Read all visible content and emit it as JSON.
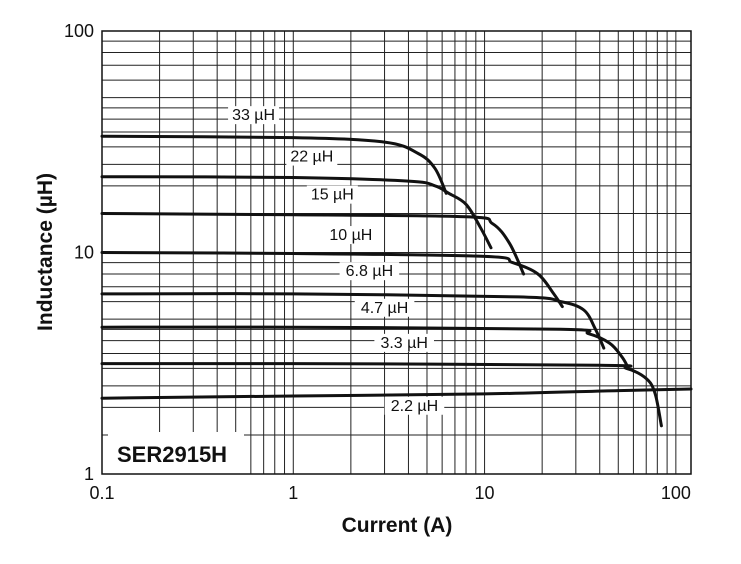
{
  "chart_data": {
    "type": "line",
    "xlabel": "Current (A)",
    "ylabel": "Inductance (µH)",
    "x_scale": "log",
    "y_scale": "log",
    "xlim": [
      0.1,
      120
    ],
    "ylim": [
      1,
      100
    ],
    "xticks": [
      {
        "value": 0.1,
        "label": "0.1"
      },
      {
        "value": 1,
        "label": "1"
      },
      {
        "value": 10,
        "label": "10"
      },
      {
        "value": 100,
        "label": "100"
      }
    ],
    "yticks": [
      {
        "value": 1,
        "label": "1"
      },
      {
        "value": 10,
        "label": "10"
      },
      {
        "value": 100,
        "label": "100"
      }
    ],
    "grid": true,
    "annotation": "SER2915H",
    "series": [
      {
        "name": "33 µH",
        "label_x": 0.62,
        "label_y": 40,
        "points": [
          [
            0.1,
            33.5
          ],
          [
            1,
            33
          ],
          [
            3,
            31.5
          ],
          [
            4.5,
            28
          ],
          [
            5.5,
            24
          ],
          [
            6.3,
            18.5
          ]
        ]
      },
      {
        "name": "22 µH",
        "label_x": 1.25,
        "label_y": 26,
        "points": [
          [
            0.1,
            22
          ],
          [
            1,
            21.8
          ],
          [
            4,
            21
          ],
          [
            5.5,
            20
          ],
          [
            6.5,
            18.5
          ],
          [
            8,
            16.5
          ],
          [
            9.5,
            13
          ],
          [
            10.8,
            10.5
          ]
        ]
      },
      {
        "name": "15 µH",
        "label_x": 1.6,
        "label_y": 17.5,
        "points": [
          [
            0.1,
            15
          ],
          [
            1,
            14.8
          ],
          [
            8,
            14.5
          ],
          [
            11,
            13.5
          ],
          [
            13.5,
            11
          ],
          [
            16,
            8
          ]
        ]
      },
      {
        "name": "10 µH",
        "label_x": 2.0,
        "label_y": 11.5,
        "points": [
          [
            0.1,
            10
          ],
          [
            1,
            9.9
          ],
          [
            10,
            9.6
          ],
          [
            14,
            9
          ],
          [
            19,
            8
          ],
          [
            23,
            6.5
          ],
          [
            25.5,
            5.7
          ]
        ]
      },
      {
        "name": "6.8 µH",
        "label_x": 2.5,
        "label_y": 7.9,
        "points": [
          [
            0.1,
            6.5
          ],
          [
            1,
            6.5
          ],
          [
            15,
            6.3
          ],
          [
            25,
            6.0
          ],
          [
            33,
            5.5
          ],
          [
            38,
            4.5
          ],
          [
            42,
            3.7
          ]
        ]
      },
      {
        "name": "4.7 µH",
        "label_x": 3.0,
        "label_y": 5.4,
        "points": [
          [
            0.1,
            4.6
          ],
          [
            1,
            4.6
          ],
          [
            25,
            4.5
          ],
          [
            35,
            4.3
          ],
          [
            45,
            3.9
          ],
          [
            52,
            3.4
          ],
          [
            56,
            3.05
          ]
        ]
      },
      {
        "name": "3.3 µH",
        "label_x": 3.8,
        "label_y": 3.75,
        "points": [
          [
            0.1,
            3.15
          ],
          [
            1,
            3.15
          ],
          [
            40,
            3.1
          ],
          [
            55,
            3.0
          ],
          [
            70,
            2.7
          ],
          [
            78,
            2.3
          ],
          [
            84,
            1.65
          ]
        ]
      },
      {
        "name": "2.2 µH",
        "label_x": 4.3,
        "label_y": 1.95,
        "points": [
          [
            0.1,
            2.2
          ],
          [
            1,
            2.25
          ],
          [
            10,
            2.3
          ],
          [
            50,
            2.38
          ],
          [
            120,
            2.42
          ]
        ]
      }
    ]
  }
}
